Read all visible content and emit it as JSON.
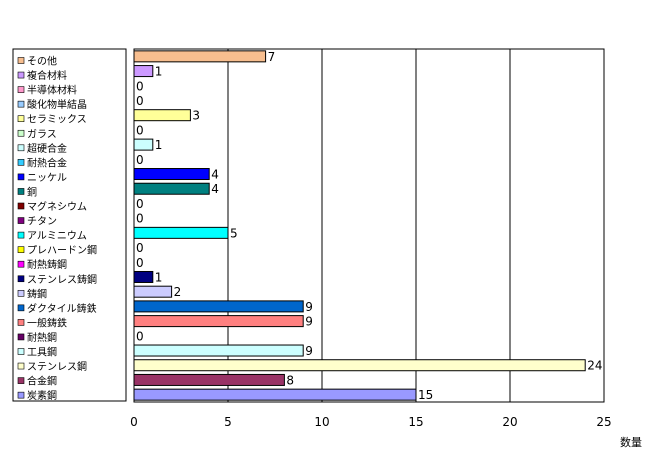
{
  "chart_data": {
    "type": "bar",
    "orientation": "horizontal",
    "categories": [
      "その他",
      "複合材料",
      "半導体材料",
      "酸化物単結晶",
      "セラミックス",
      "ガラス",
      "超硬合金",
      "耐熱合金",
      "ニッケル",
      "銅",
      "マグネシウム",
      "チタン",
      "アルミニウム",
      "プレハードン鋼",
      "耐熱鋳鋼",
      "ステンレス鋳鋼",
      "鋳鋼",
      "ダクタイル鋳鉄",
      "一般鋳鉄",
      "耐熱鋼",
      "工具鋼",
      "ステンレス鋼",
      "合金鋼",
      "炭素鋼"
    ],
    "values": [
      7,
      1,
      0,
      0,
      3,
      0,
      1,
      0,
      4,
      4,
      0,
      0,
      5,
      0,
      0,
      1,
      2,
      9,
      9,
      0,
      9,
      24,
      8,
      15
    ],
    "colors": [
      "#f7be8f",
      "#cc99ff",
      "#ff99cc",
      "#99ccff",
      "#ffff99",
      "#ccffcc",
      "#ccffff",
      "#33ccff",
      "#0000ff",
      "#008080",
      "#800000",
      "#800080",
      "#00ffff",
      "#ffff00",
      "#ff00ff",
      "#000080",
      "#ccccff",
      "#0066cc",
      "#ff8080",
      "#660066",
      "#ccffff",
      "#ffffcc",
      "#993366",
      "#9999ff"
    ],
    "xlim": [
      0,
      25
    ],
    "x_ticks": [
      "0",
      "5",
      "10",
      "15",
      "20",
      "25"
    ],
    "xlabel": "数量",
    "grid": true,
    "legend_position": "left"
  }
}
